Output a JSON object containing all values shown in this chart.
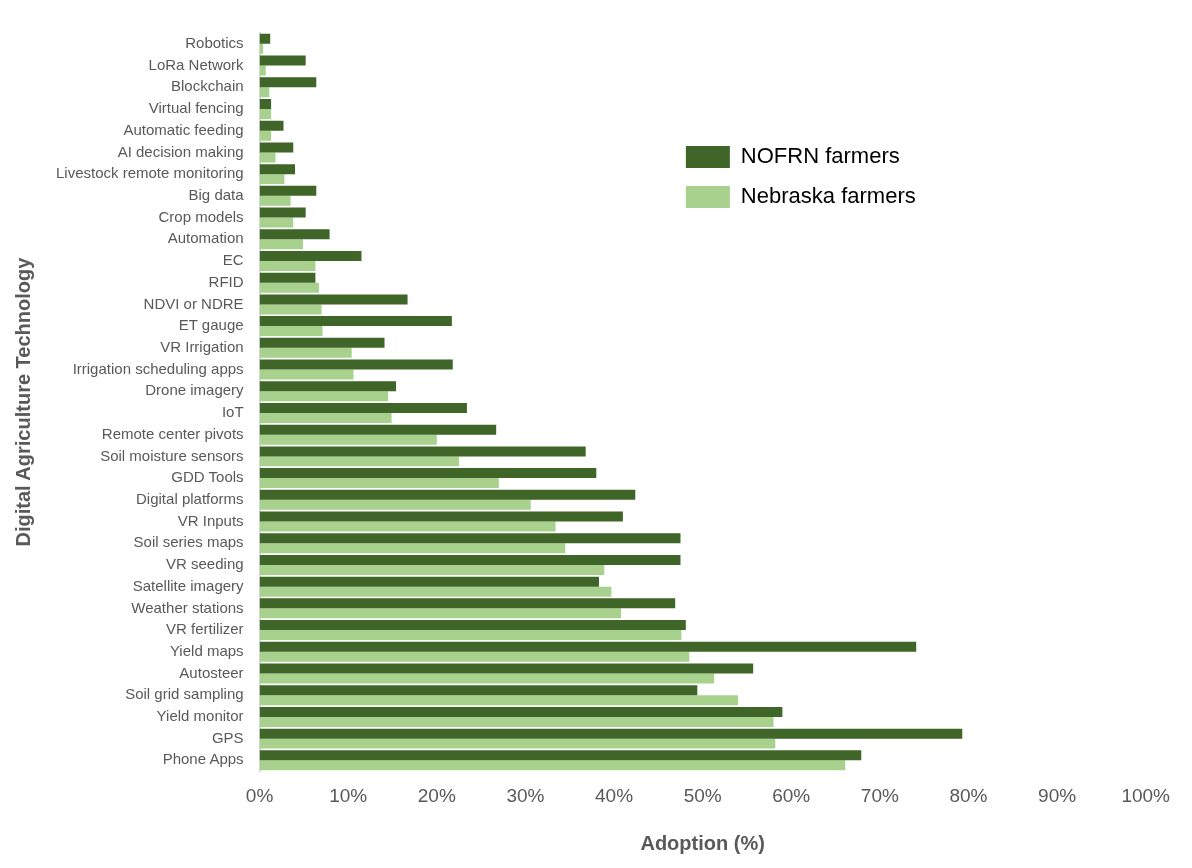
{
  "chart_data": {
    "type": "bar",
    "orientation": "horizontal",
    "xlabel": "Adoption (%)",
    "ylabel": "Digital Agriculture Technology",
    "categories": [
      "Robotics",
      "LoRa Network",
      "Blockchain",
      "Virtual fencing",
      "Automatic feeding",
      "AI decision making",
      "Livestock remote monitoring",
      "Big data",
      "Crop models",
      "Automation",
      "EC",
      "RFID",
      "NDVI or NDRE",
      "ET gauge",
      "VR Irrigation",
      "Irrigation scheduling apps",
      "Drone imagery",
      "IoT",
      "Remote center pivots",
      "Soil moisture sensors",
      "GDD Tools",
      "Digital platforms",
      "VR Inputs",
      "Soil series maps",
      "VR seeding",
      "Satellite imagery",
      "Weather stations",
      "VR fertilizer",
      "Yield maps",
      "Autosteer",
      "Soil grid sampling",
      "Yield monitor",
      "GPS",
      "Phone Apps"
    ],
    "series": [
      {
        "name": "NOFRN farmers",
        "color": "#3f6529",
        "values": [
          1.2,
          5.2,
          6.4,
          1.3,
          2.7,
          3.8,
          4.0,
          6.4,
          5.2,
          7.9,
          11.5,
          6.3,
          16.7,
          21.7,
          14.1,
          21.8,
          15.4,
          23.4,
          26.7,
          36.8,
          38.0,
          42.4,
          41.0,
          47.5,
          47.5,
          38.3,
          46.9,
          48.1,
          74.1,
          55.7,
          49.4,
          59.0,
          79.3,
          67.9
        ]
      },
      {
        "name": "Nebraska farmers",
        "color": "#a9d18e",
        "values": [
          0.4,
          0.7,
          1.1,
          1.3,
          1.3,
          1.8,
          2.8,
          3.5,
          3.8,
          4.9,
          6.3,
          6.7,
          7.0,
          7.1,
          10.4,
          10.6,
          14.5,
          14.9,
          20.0,
          22.5,
          27.0,
          30.6,
          33.4,
          34.5,
          38.9,
          39.7,
          40.8,
          47.6,
          48.5,
          51.3,
          54.0,
          58.0,
          58.2,
          66.1
        ]
      }
    ],
    "xlim": [
      0,
      100
    ],
    "xticks": [
      {
        "value": 0,
        "label": "0%"
      },
      {
        "value": 10,
        "label": "10%"
      },
      {
        "value": 20,
        "label": "20%"
      },
      {
        "value": 30,
        "label": "30%"
      },
      {
        "value": 40,
        "label": "40%"
      },
      {
        "value": 50,
        "label": "50%"
      },
      {
        "value": 60,
        "label": "60%"
      },
      {
        "value": 70,
        "label": "70%"
      },
      {
        "value": 80,
        "label": "80%"
      },
      {
        "value": 90,
        "label": "90%"
      },
      {
        "value": 100,
        "label": "100%"
      }
    ],
    "grid": false,
    "legend": "top right"
  }
}
